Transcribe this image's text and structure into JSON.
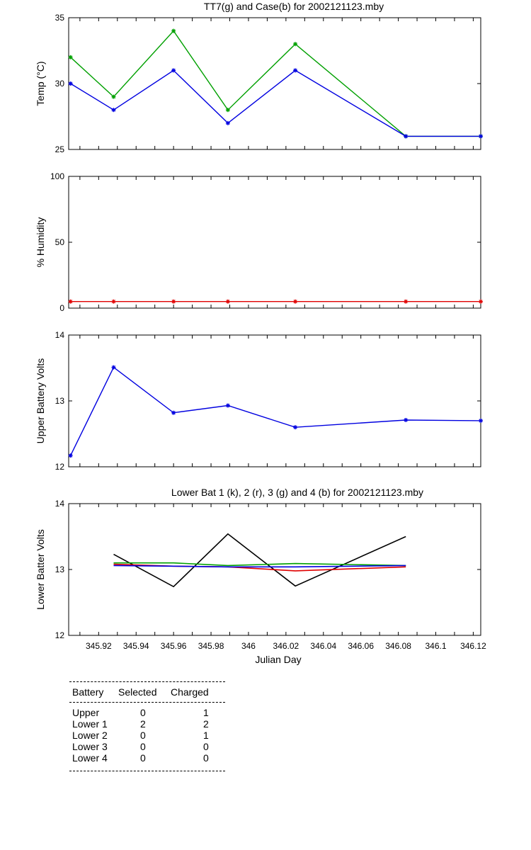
{
  "chart_data": [
    {
      "type": "line",
      "title": "TT7(g) and Case(b) for 2002121123.mby",
      "xlabel": "",
      "ylabel": "Temp  (°C)",
      "xlim": [
        345.904,
        346.124
      ],
      "ylim": [
        25,
        35
      ],
      "yticks": [
        25,
        30,
        35
      ],
      "grid": false,
      "series": [
        {
          "color": "#00a000",
          "marker": "*",
          "x": [
            345.905,
            345.928,
            345.96,
            345.989,
            346.025,
            346.084,
            346.124
          ],
          "values": [
            32,
            29,
            34,
            28,
            33,
            26,
            26
          ]
        },
        {
          "color": "#0000e0",
          "marker": "*",
          "x": [
            345.905,
            345.928,
            345.96,
            345.989,
            346.025,
            346.084,
            346.124
          ],
          "values": [
            30,
            28,
            31,
            27,
            31,
            26,
            26
          ]
        }
      ]
    },
    {
      "type": "line",
      "title": "",
      "xlabel": "",
      "ylabel": "% Humidity",
      "xlim": [
        345.904,
        346.124
      ],
      "ylim": [
        0,
        100
      ],
      "yticks": [
        0,
        50,
        100
      ],
      "grid": false,
      "series": [
        {
          "color": "#e00000",
          "marker": "*",
          "x": [
            345.905,
            345.928,
            345.96,
            345.989,
            346.025,
            346.084,
            346.124
          ],
          "values": [
            5,
            5,
            5,
            5,
            5,
            5,
            5
          ]
        }
      ]
    },
    {
      "type": "line",
      "title": "",
      "xlabel": "",
      "ylabel": "Upper Battery Volts",
      "xlim": [
        345.904,
        346.124
      ],
      "ylim": [
        12,
        14
      ],
      "yticks": [
        12,
        13,
        14
      ],
      "grid": false,
      "series": [
        {
          "color": "#0000e0",
          "marker": "*",
          "x": [
            345.905,
            345.928,
            345.96,
            345.989,
            346.025,
            346.084,
            346.124
          ],
          "values": [
            12.17,
            13.51,
            12.82,
            12.93,
            12.6,
            12.71,
            12.7
          ]
        }
      ]
    },
    {
      "type": "line",
      "title": "Lower Bat 1 (k), 2 (r), 3 (g) and 4 (b) for 2002121123.mby",
      "xlabel": "Julian Day",
      "ylabel": "Lower Batter Volts",
      "xlim": [
        345.904,
        346.124
      ],
      "ylim": [
        12,
        14
      ],
      "yticks": [
        12,
        13,
        14
      ],
      "xticks": [
        345.92,
        345.94,
        345.96,
        345.98,
        346,
        346.02,
        346.04,
        346.06,
        346.08,
        346.1,
        346.12
      ],
      "xticklabels": [
        "345.92",
        "345.94",
        "345.96",
        "345.98",
        "346",
        "346.02",
        "346.04",
        "346.06",
        "346.08",
        "346.1",
        "346.12"
      ],
      "grid": false,
      "series": [
        {
          "color": "#000000",
          "marker": "",
          "x": [
            345.928,
            345.96,
            345.989,
            346.025,
            346.084
          ],
          "values": [
            13.23,
            12.74,
            13.54,
            12.75,
            13.5
          ]
        },
        {
          "color": "#e00000",
          "marker": "",
          "x": [
            345.928,
            345.96,
            345.989,
            346.025,
            346.084
          ],
          "values": [
            13.08,
            13.05,
            13.04,
            12.98,
            13.04
          ]
        },
        {
          "color": "#00a000",
          "marker": "",
          "x": [
            345.928,
            345.96,
            345.989,
            346.025,
            346.084
          ],
          "values": [
            13.1,
            13.1,
            13.06,
            13.09,
            13.06
          ]
        },
        {
          "color": "#0000e0",
          "marker": "",
          "x": [
            345.928,
            345.96,
            345.989,
            346.025,
            346.084
          ],
          "values": [
            13.06,
            13.05,
            13.04,
            13.04,
            13.06
          ]
        }
      ]
    }
  ],
  "battery_table": {
    "headers": [
      "Battery",
      "Selected",
      "Charged"
    ],
    "rows": [
      {
        "battery": "Upper",
        "selected": "0",
        "charged": "1"
      },
      {
        "battery": "Lower 1",
        "selected": "2",
        "charged": "2"
      },
      {
        "battery": "Lower 2",
        "selected": "0",
        "charged": "1"
      },
      {
        "battery": "Lower 3",
        "selected": "0",
        "charged": "0"
      },
      {
        "battery": "Lower 4",
        "selected": "0",
        "charged": "0"
      }
    ]
  }
}
